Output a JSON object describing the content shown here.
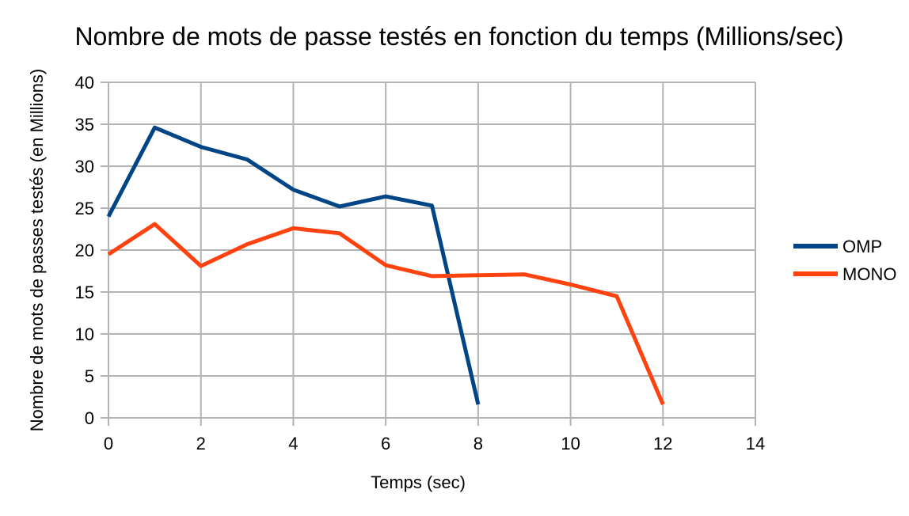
{
  "chart_data": {
    "type": "line",
    "title": "Nombre de mots de passe testés en fonction du temps (Millions/sec)",
    "xlabel": "Temps (sec)",
    "ylabel": "Nombre de mots de passes testés (en Millions)",
    "xlim": [
      0,
      14
    ],
    "ylim": [
      0,
      40
    ],
    "xticks": [
      "0",
      "2",
      "4",
      "6",
      "8",
      "10",
      "12",
      "14"
    ],
    "yticks": [
      "0",
      "5",
      "10",
      "15",
      "20",
      "25",
      "30",
      "35",
      "40"
    ],
    "grid": true,
    "legend_position": "right",
    "series": [
      {
        "name": "OMP",
        "color": "#004586",
        "x": [
          0,
          1,
          2,
          3,
          4,
          5,
          6,
          7,
          8
        ],
        "y": [
          24,
          34.6,
          32.3,
          30.8,
          27.2,
          25.2,
          26.4,
          25.3,
          1.6
        ]
      },
      {
        "name": "MONO",
        "color": "#ff420e",
        "x": [
          0,
          1,
          2,
          3,
          4,
          5,
          6,
          7,
          8,
          9,
          10,
          11,
          12
        ],
        "y": [
          19.5,
          23.1,
          18.1,
          20.7,
          22.6,
          22,
          18.2,
          16.9,
          17,
          17.1,
          15.9,
          14.5,
          1.6
        ]
      }
    ]
  }
}
